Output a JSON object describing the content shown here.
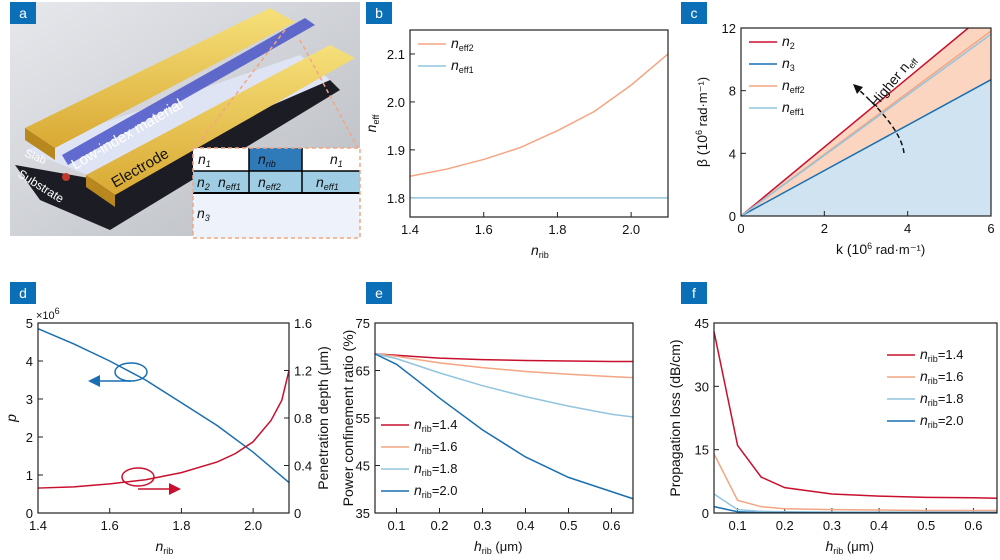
{
  "panels": {
    "a": "a",
    "b": "b",
    "c": "c",
    "d": "d",
    "e": "e",
    "f": "f"
  },
  "illustration": {
    "material": "Low-index material",
    "electrode": "Electrode",
    "slab": "Slab",
    "substrate": "Substrate",
    "table": {
      "n1": "n",
      "n1_sub": "1",
      "nrib": "n",
      "nrib_sub": "rib",
      "n2": "n",
      "n2_sub": "2",
      "neff1": "n",
      "neff1_sub": "eff1",
      "neff2": "n",
      "neff2_sub": "eff2",
      "n3": "n",
      "n3_sub": "3"
    }
  },
  "colors": {
    "red": "#c8102e",
    "blue": "#1a6fb0",
    "orange": "#f4a582",
    "lightblue": "#92c5de",
    "fill_orange": "#fbd5c0",
    "fill_blue": "#cfe3f0"
  },
  "chart_data": [
    {
      "id": "b",
      "type": "line",
      "xlabel": "n",
      "xlabel_sub": "rib",
      "ylabel": "n",
      "ylabel_sub": "eff",
      "xlim": [
        1.4,
        2.1
      ],
      "ylim": [
        1.76,
        2.15
      ],
      "xticks": [
        "1.4",
        "1.6",
        "1.8",
        "2.0"
      ],
      "yticks": [
        "1.8",
        "1.9",
        "2.0",
        "2.1"
      ],
      "legend": "top-left",
      "x": [
        1.4,
        1.5,
        1.6,
        1.7,
        1.8,
        1.9,
        2.0,
        2.1
      ],
      "series": [
        {
          "name": "n",
          "name_sub": "eff2",
          "color": "#f4a582",
          "values": [
            1.845,
            1.86,
            1.88,
            1.905,
            1.94,
            1.98,
            2.035,
            2.1
          ]
        },
        {
          "name": "n",
          "name_sub": "eff1",
          "color": "#92c5de",
          "values": [
            1.8,
            1.8,
            1.8,
            1.8,
            1.8,
            1.8,
            1.8,
            1.8
          ]
        }
      ]
    },
    {
      "id": "c",
      "type": "area",
      "xlabel": "k (10",
      "xlabel_sup": "6",
      "xlabel_end": " rad·m⁻¹)",
      "ylabel": "β (10",
      "ylabel_sup": "6",
      "ylabel_end": " rad·m⁻¹)",
      "xlim": [
        0,
        6
      ],
      "ylim": [
        0,
        12
      ],
      "xticks": [
        "0",
        "2",
        "4",
        "6"
      ],
      "yticks": [
        "0",
        "4",
        "8",
        "12"
      ],
      "legend": "top-left",
      "annotation": "Higher n",
      "annotation_sub": "eff",
      "x": [
        0,
        6
      ],
      "series": [
        {
          "name": "n",
          "name_sub": "2",
          "color": "#c8102e",
          "values": [
            0,
            13.2
          ]
        },
        {
          "name": "n",
          "name_sub": "3",
          "color": "#1a6fb0",
          "values": [
            0,
            8.7
          ]
        },
        {
          "name": "n",
          "name_sub": "eff2",
          "color": "#f4a582",
          "values": [
            0,
            11.8
          ]
        },
        {
          "name": "n",
          "name_sub": "eff1",
          "color": "#92c5de",
          "values": [
            0,
            11.6
          ]
        }
      ]
    },
    {
      "id": "d",
      "type": "line",
      "xlabel": "n",
      "xlabel_sub": "rib",
      "ylabel": "p",
      "ylabel_right": "Penetration depth (μm)",
      "y_multiplier": "×10",
      "y_multiplier_sup": "6",
      "xlim": [
        1.4,
        2.1
      ],
      "ylim": [
        0,
        5
      ],
      "ylim_right": [
        0,
        1.6
      ],
      "xticks": [
        "1.4",
        "1.6",
        "1.8",
        "2.0"
      ],
      "yticks": [
        "0",
        "1",
        "2",
        "3",
        "4",
        "5"
      ],
      "yticks_right": [
        "0",
        "0.4",
        "0.8",
        "1.2",
        "1.6"
      ],
      "series": [
        {
          "axis": "left",
          "color": "#1a6fb0",
          "x": [
            1.4,
            1.5,
            1.6,
            1.7,
            1.8,
            1.9,
            2.0,
            2.1
          ],
          "values": [
            4.85,
            4.45,
            4.0,
            3.5,
            2.9,
            2.3,
            1.6,
            0.8
          ]
        },
        {
          "axis": "right",
          "color": "#c8102e",
          "x": [
            1.4,
            1.5,
            1.6,
            1.7,
            1.8,
            1.9,
            1.95,
            2.0,
            2.05,
            2.08,
            2.1
          ],
          "values": [
            0.21,
            0.22,
            0.245,
            0.28,
            0.34,
            0.43,
            0.5,
            0.6,
            0.78,
            0.95,
            1.2
          ]
        }
      ]
    },
    {
      "id": "e",
      "type": "line",
      "xlabel": "h",
      "xlabel_sub": "rib",
      "xlabel_end": " (μm)",
      "ylabel": "Power confinement ratio (%)",
      "xlim": [
        0.05,
        0.65
      ],
      "ylim": [
        35,
        75
      ],
      "xticks": [
        "0.1",
        "0.2",
        "0.3",
        "0.4",
        "0.5",
        "0.6"
      ],
      "yticks": [
        "35",
        "45",
        "55",
        "65",
        "75"
      ],
      "legend": "bottom-left",
      "x": [
        0.05,
        0.1,
        0.15,
        0.2,
        0.3,
        0.4,
        0.5,
        0.6,
        0.65
      ],
      "series": [
        {
          "name": "n",
          "name_sub": "rib",
          "name_end": "=1.4",
          "color": "#c8102e",
          "values": [
            68.5,
            68.2,
            67.9,
            67.6,
            67.3,
            67.1,
            67.0,
            66.9,
            66.9
          ]
        },
        {
          "name": "n",
          "name_sub": "rib",
          "name_end": "=1.6",
          "color": "#f4a582",
          "values": [
            68.5,
            68.0,
            67.3,
            66.6,
            65.6,
            64.8,
            64.2,
            63.7,
            63.5
          ]
        },
        {
          "name": "n",
          "name_sub": "rib",
          "name_end": "=1.8",
          "color": "#92c5de",
          "values": [
            68.5,
            67.5,
            66.0,
            64.5,
            61.8,
            59.5,
            57.5,
            55.8,
            55.2
          ]
        },
        {
          "name": "n",
          "name_sub": "rib",
          "name_end": "=2.0",
          "color": "#1a6fb0",
          "values": [
            68.5,
            66.3,
            62.8,
            59.2,
            52.5,
            46.8,
            42.5,
            39.5,
            38.0
          ]
        }
      ]
    },
    {
      "id": "f",
      "type": "line",
      "xlabel": "h",
      "xlabel_sub": "rib",
      "xlabel_end": " (μm)",
      "ylabel": "Propagation loss (dB/cm)",
      "xlim": [
        0.05,
        0.65
      ],
      "ylim": [
        0,
        45
      ],
      "xticks": [
        "0.1",
        "0.2",
        "0.3",
        "0.4",
        "0.5",
        "0.6"
      ],
      "yticks": [
        "0",
        "15",
        "30",
        "45"
      ],
      "legend": "top-right",
      "x": [
        0.05,
        0.1,
        0.15,
        0.2,
        0.3,
        0.4,
        0.5,
        0.6,
        0.65
      ],
      "series": [
        {
          "name": "n",
          "name_sub": "rib",
          "name_end": "=1.4",
          "color": "#c8102e",
          "values": [
            43,
            16,
            8.5,
            6,
            4.5,
            4,
            3.7,
            3.6,
            3.5
          ]
        },
        {
          "name": "n",
          "name_sub": "rib",
          "name_end": "=1.6",
          "color": "#f4a582",
          "values": [
            14,
            3,
            1.5,
            1,
            0.8,
            0.7,
            0.6,
            0.6,
            0.6
          ]
        },
        {
          "name": "n",
          "name_sub": "rib",
          "name_end": "=1.8",
          "color": "#92c5de",
          "values": [
            4.5,
            0.8,
            0.4,
            0.3,
            0.2,
            0.2,
            0.2,
            0.2,
            0.2
          ]
        },
        {
          "name": "n",
          "name_sub": "rib",
          "name_end": "=2.0",
          "color": "#1a6fb0",
          "values": [
            1.5,
            0.3,
            0.1,
            0.1,
            0.1,
            0.1,
            0.1,
            0.1,
            0.1
          ]
        }
      ]
    }
  ]
}
